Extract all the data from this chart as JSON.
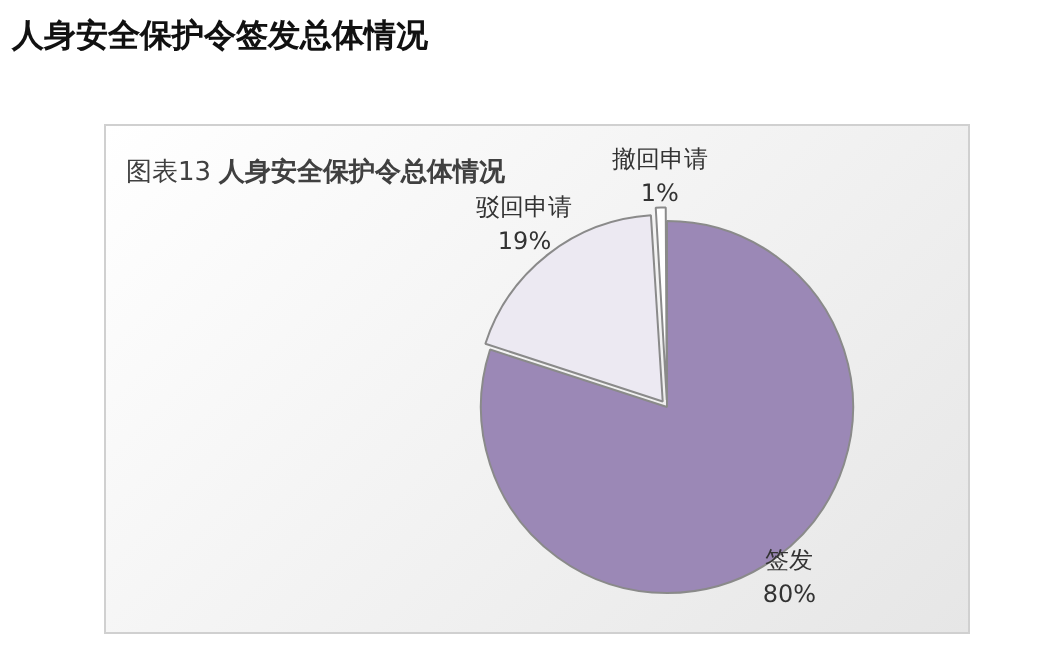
{
  "chart_data": {
    "type": "pie",
    "title": "人身安全保护令签发总体情况",
    "subtitle": "图表13 人身安全保护令总体情况",
    "categories": [
      "签发",
      "驳回申请",
      "撤回申请"
    ],
    "values": [
      80,
      19,
      1
    ],
    "value_labels": [
      "80%",
      "19%",
      "1%"
    ],
    "colors": [
      "#9b88b6",
      "#ece9f2",
      "#ffffff"
    ],
    "legend": false
  }
}
